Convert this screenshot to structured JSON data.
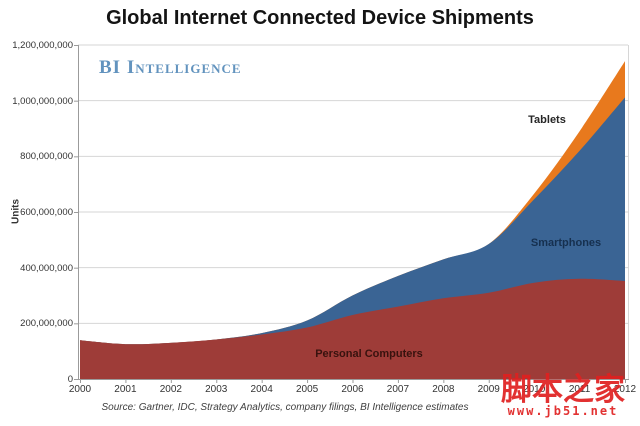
{
  "title": "Global Internet Connected Device Shipments",
  "brand": {
    "text": "BI Intelligence",
    "color": "#6293be"
  },
  "y_axis": {
    "title": "Units",
    "tick_labels": [
      "0",
      "200,000,000",
      "400,000,000",
      "600,000,000",
      "800,000,000",
      "1,000,000,000",
      "1,200,000,000"
    ]
  },
  "x_axis": {
    "tick_labels": [
      "2000",
      "2001",
      "2002",
      "2003",
      "2004",
      "2005",
      "2006",
      "2007",
      "2008",
      "2009",
      "2010",
      "2011",
      "2012"
    ]
  },
  "series_labels": {
    "tablets": "Tablets",
    "smartphones": "Smartphones",
    "personal_computers": "Personal Computers"
  },
  "source_note": "Source: Gartner, IDC, Strategy Analytics, company filings, BI Intelligence estimates",
  "watermark": {
    "line1": "脚本之家",
    "line2": "www.jb51.net"
  },
  "colors": {
    "personal_computers": "#9e3c38",
    "smartphones": "#3a6494",
    "tablets": "#e8791d",
    "gridline": "#d6d6d6",
    "axis": "#9b9b9b",
    "watermark_red": "#e02020",
    "brand_blue": "#6293be"
  },
  "chart_data": {
    "type": "area",
    "stacked": true,
    "title": "Global Internet Connected Device Shipments",
    "ylabel": "Units",
    "xlabel": "",
    "ylim": [
      0,
      1200000000
    ],
    "y_tick_step": 200000000,
    "grid": true,
    "legend": "inline-labels",
    "x": [
      2000,
      2001,
      2002,
      2003,
      2004,
      2005,
      2006,
      2007,
      2008,
      2009,
      2010,
      2011,
      2012
    ],
    "series": [
      {
        "name": "Personal Computers",
        "color": "#9e3c38",
        "values_millions": [
          139,
          125,
          130,
          142,
          160,
          185,
          230,
          260,
          290,
          310,
          346,
          360,
          352
        ]
      },
      {
        "name": "Smartphones",
        "color": "#3a6494",
        "values_millions": [
          0,
          0,
          0,
          0,
          5,
          25,
          70,
          110,
          140,
          175,
          300,
          460,
          660
        ]
      },
      {
        "name": "Tablets",
        "color": "#e8791d",
        "values_millions": [
          0,
          0,
          0,
          0,
          0,
          0,
          0,
          0,
          0,
          0,
          20,
          70,
          130
        ]
      }
    ],
    "annotations": [
      "Tablets",
      "Smartphones",
      "Personal Computers"
    ]
  }
}
